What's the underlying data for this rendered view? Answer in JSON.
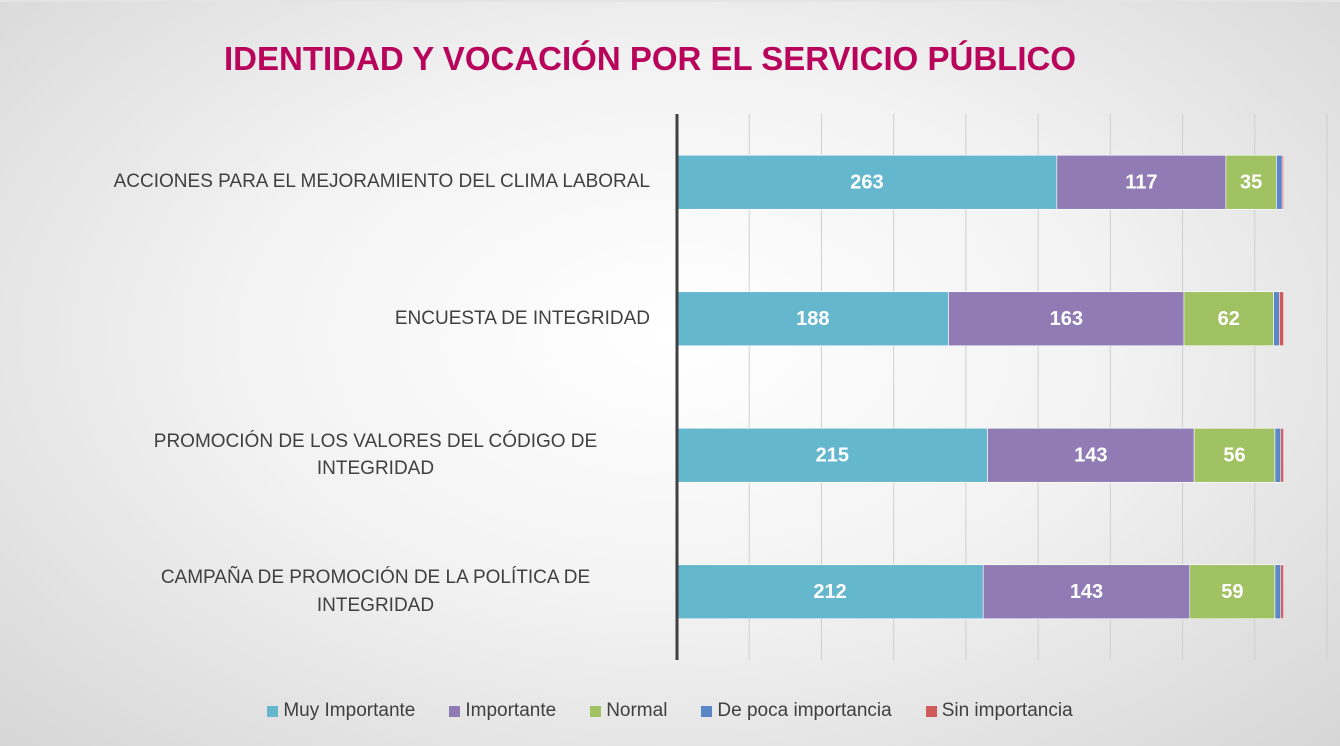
{
  "chart_data": {
    "type": "stacked_barh",
    "title": "IDENTIDAD Y VOCACIÓN POR EL SERVICIO PÚBLICO",
    "categories": [
      "ACCIONES PARA EL MEJORAMIENTO DEL CLIMA LABORAL",
      "ENCUESTA DE INTEGRIDAD",
      "PROMOCIÓN DE LOS VALORES DEL CÓDIGO DE INTEGRIDAD",
      "CAMPAÑA DE PROMOCIÓN DE LA POLÍTICA DE INTEGRIDAD"
    ],
    "series": [
      {
        "name": "Muy Importante",
        "color": "#64b7cd",
        "values": [
          263,
          188,
          215,
          212
        ],
        "data_labels": true
      },
      {
        "name": "Importante",
        "color": "#907bb4",
        "values": [
          117,
          163,
          143,
          143
        ],
        "data_labels": true
      },
      {
        "name": "Normal",
        "color": "#a0c262",
        "values": [
          35,
          62,
          56,
          59
        ],
        "data_labels": true
      },
      {
        "name": "De poca importancia",
        "color": "#5b87c6",
        "values": [
          4,
          4,
          4,
          4
        ],
        "data_labels": false
      },
      {
        "name": "Sin importancia",
        "color": "#d05b5b",
        "values": [
          1,
          3,
          2,
          2
        ],
        "data_labels": false
      }
    ],
    "xlim": [
      0,
      450
    ],
    "xticks": [
      0,
      50,
      100,
      150,
      200,
      250,
      300,
      350,
      400,
      450
    ],
    "grid": true,
    "legend": "bottom"
  }
}
